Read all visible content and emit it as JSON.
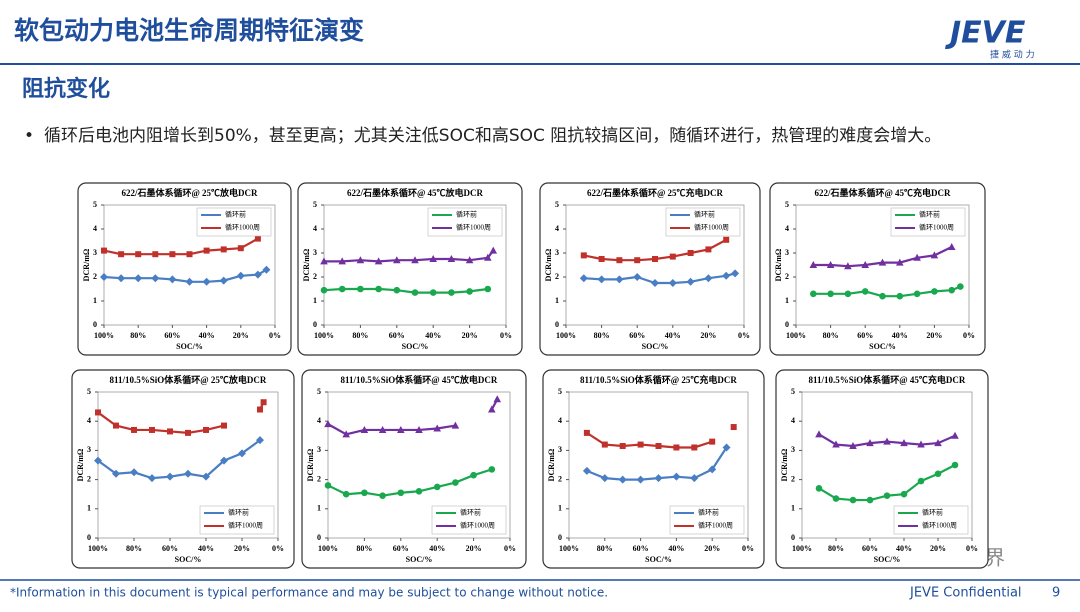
{
  "header": {
    "title": "软包动力电池生命周期特征演变",
    "logo": "JEVE",
    "logo_sub": "捷 威 动 力",
    "section": "阻抗变化",
    "bullet": "循环后电池内阻增长到50%，甚至更高；尤其关注低SOC和高SOC 阻抗较搞区间，随循环进行，热管理的难度会增大。"
  },
  "footer": {
    "note": "*Information in this document is typical performance and may be subject to change without notice.",
    "confidential": "JEVE Confidential",
    "page": "9",
    "watermark": "电动新视界"
  },
  "chart_data": [
    {
      "type": "line",
      "title": "622/石墨体系循环@ 25℃放电DCR",
      "x_label": "SOC/%",
      "y_label": "DCR/mΩ",
      "legend": "upper right",
      "x": [
        100,
        90,
        80,
        70,
        60,
        50,
        40,
        30,
        20,
        10,
        5
      ],
      "series": [
        {
          "name": "循环前",
          "color": "#4a7ec4",
          "marker": "diamond",
          "values": [
            2.0,
            1.95,
            1.95,
            1.95,
            1.9,
            1.8,
            1.8,
            1.85,
            2.05,
            2.1,
            2.3
          ]
        },
        {
          "name": "循环1000周",
          "color": "#c0312b",
          "marker": "square",
          "values": [
            3.1,
            2.95,
            2.95,
            2.95,
            2.95,
            2.95,
            3.1,
            3.15,
            3.2,
            3.6,
            null
          ]
        }
      ],
      "xlim": [
        100,
        0
      ],
      "ylim": [
        0,
        5
      ],
      "yticks": [
        0,
        1,
        2,
        3,
        4,
        5
      ],
      "xticks": [
        {
          "value": 100,
          "label": "100%"
        },
        {
          "value": 80,
          "label": "80%"
        },
        {
          "value": 60,
          "label": "60%"
        },
        {
          "value": 40,
          "label": "40%"
        },
        {
          "value": 20,
          "label": "20%"
        },
        {
          "value": 0,
          "label": "0%"
        }
      ]
    },
    {
      "type": "line",
      "title": "622/石墨体系循环@ 45℃放电DCR",
      "x_label": "SOC/%",
      "y_label": "DCR/mΩ",
      "legend": "upper right",
      "x": [
        100,
        90,
        80,
        70,
        60,
        50,
        40,
        30,
        20,
        10,
        7
      ],
      "series": [
        {
          "name": "循环前",
          "color": "#1aa84f",
          "marker": "circle",
          "values": [
            1.45,
            1.5,
            1.5,
            1.5,
            1.45,
            1.35,
            1.35,
            1.35,
            1.4,
            1.5,
            null
          ]
        },
        {
          "name": "循环1000周",
          "color": "#7030a0",
          "marker": "triangle",
          "values": [
            2.65,
            2.65,
            2.7,
            2.65,
            2.7,
            2.7,
            2.75,
            2.75,
            2.7,
            2.8,
            3.1
          ]
        }
      ],
      "xlim": [
        100,
        0
      ],
      "ylim": [
        0,
        5
      ],
      "yticks": [
        0,
        1,
        2,
        3,
        4,
        5
      ],
      "xticks": [
        {
          "value": 100,
          "label": "100%"
        },
        {
          "value": 80,
          "label": "80%"
        },
        {
          "value": 60,
          "label": "60%"
        },
        {
          "value": 40,
          "label": "40%"
        },
        {
          "value": 20,
          "label": "20%"
        },
        {
          "value": 0,
          "label": "0%"
        }
      ]
    },
    {
      "type": "line",
      "title": "622/石墨体系循环@ 25℃充电DCR",
      "x_label": "SOC/%",
      "y_label": "DCR/mΩ",
      "legend": "upper right",
      "x": [
        90,
        80,
        70,
        60,
        50,
        40,
        30,
        20,
        10,
        5
      ],
      "series": [
        {
          "name": "循环前",
          "color": "#4a7ec4",
          "marker": "diamond",
          "values": [
            1.95,
            1.9,
            1.9,
            2.0,
            1.75,
            1.75,
            1.8,
            1.95,
            2.05,
            2.15
          ]
        },
        {
          "name": "循环1000周",
          "color": "#c0312b",
          "marker": "square",
          "values": [
            2.9,
            2.75,
            2.7,
            2.7,
            2.75,
            2.85,
            3.0,
            3.15,
            3.55,
            null
          ]
        }
      ],
      "xlim": [
        100,
        0
      ],
      "ylim": [
        0,
        5
      ],
      "yticks": [
        0,
        1,
        2,
        3,
        4,
        5
      ],
      "xticks": [
        {
          "value": 100,
          "label": "100%"
        },
        {
          "value": 80,
          "label": "80%"
        },
        {
          "value": 60,
          "label": "60%"
        },
        {
          "value": 40,
          "label": "40%"
        },
        {
          "value": 20,
          "label": "20%"
        },
        {
          "value": 0,
          "label": "0%"
        }
      ]
    },
    {
      "type": "line",
      "title": "622/石墨体系循环@ 45℃充电DCR",
      "x_label": "SOC/%",
      "y_label": "DCR/mΩ",
      "legend": "upper right",
      "x": [
        90,
        80,
        70,
        60,
        50,
        40,
        30,
        20,
        10,
        5
      ],
      "series": [
        {
          "name": "循环前",
          "color": "#1aa84f",
          "marker": "circle",
          "values": [
            1.3,
            1.3,
            1.3,
            1.4,
            1.2,
            1.2,
            1.3,
            1.4,
            1.45,
            1.6
          ]
        },
        {
          "name": "循环1000周",
          "color": "#7030a0",
          "marker": "triangle",
          "values": [
            2.5,
            2.5,
            2.45,
            2.5,
            2.6,
            2.6,
            2.8,
            2.9,
            3.25,
            null
          ]
        }
      ],
      "xlim": [
        100,
        0
      ],
      "ylim": [
        0,
        5
      ],
      "yticks": [
        0,
        1,
        2,
        3,
        4,
        5
      ],
      "xticks": [
        {
          "value": 100,
          "label": "100%"
        },
        {
          "value": 80,
          "label": "80%"
        },
        {
          "value": 60,
          "label": "60%"
        },
        {
          "value": 40,
          "label": "40%"
        },
        {
          "value": 20,
          "label": "20%"
        },
        {
          "value": 0,
          "label": "0%"
        }
      ]
    },
    {
      "type": "line",
      "title": "811/10.5%SiO体系循环@ 25℃放电DCR",
      "x_label": "SOC/%",
      "y_label": "DCR/mΩ",
      "legend": "lower right",
      "x": [
        100,
        90,
        80,
        70,
        60,
        50,
        40,
        30,
        20,
        10,
        8
      ],
      "series": [
        {
          "name": "循环前",
          "color": "#4a7ec4",
          "marker": "diamond",
          "values": [
            2.65,
            2.2,
            2.25,
            2.05,
            2.1,
            2.2,
            2.1,
            2.65,
            2.9,
            3.35,
            null
          ]
        },
        {
          "name": "循环1000周",
          "color": "#c0312b",
          "marker": "square",
          "values": [
            4.3,
            3.85,
            3.7,
            3.7,
            3.65,
            3.6,
            3.7,
            3.85,
            null,
            4.4,
            4.65
          ]
        }
      ],
      "xlim": [
        100,
        0
      ],
      "ylim": [
        0,
        5
      ],
      "yticks": [
        0,
        1,
        2,
        3,
        4,
        5
      ],
      "xticks": [
        {
          "value": 100,
          "label": "100%"
        },
        {
          "value": 80,
          "label": "80%"
        },
        {
          "value": 60,
          "label": "60%"
        },
        {
          "value": 40,
          "label": "40%"
        },
        {
          "value": 20,
          "label": "20%"
        },
        {
          "value": 0,
          "label": "0%"
        }
      ]
    },
    {
      "type": "line",
      "title": "811/10.5%SiO体系循环@ 45℃放电DCR",
      "x_label": "SOC/%",
      "y_label": "DCR/mΩ",
      "legend": "lower right",
      "x": [
        100,
        90,
        80,
        70,
        60,
        50,
        40,
        30,
        20,
        10,
        7
      ],
      "series": [
        {
          "name": "循环前",
          "color": "#1aa84f",
          "marker": "circle",
          "values": [
            1.8,
            1.5,
            1.55,
            1.45,
            1.55,
            1.6,
            1.75,
            1.9,
            2.15,
            2.35,
            null
          ]
        },
        {
          "name": "循环1000周",
          "color": "#7030a0",
          "marker": "triangle",
          "values": [
            3.9,
            3.55,
            3.7,
            3.7,
            3.7,
            3.7,
            3.75,
            3.85,
            null,
            4.4,
            4.75
          ]
        }
      ],
      "xlim": [
        100,
        0
      ],
      "ylim": [
        0,
        5
      ],
      "yticks": [
        0,
        1,
        2,
        3,
        4,
        5
      ],
      "xticks": [
        {
          "value": 100,
          "label": "100%"
        },
        {
          "value": 80,
          "label": "80%"
        },
        {
          "value": 60,
          "label": "60%"
        },
        {
          "value": 40,
          "label": "40%"
        },
        {
          "value": 20,
          "label": "20%"
        },
        {
          "value": 0,
          "label": "0%"
        }
      ]
    },
    {
      "type": "line",
      "title": "811/10.5%SiO体系循环@ 25℃充电DCR",
      "x_label": "SOC/%",
      "y_label": "DCR/mΩ",
      "legend": "lower right",
      "x": [
        90,
        80,
        70,
        60,
        50,
        40,
        30,
        20,
        12,
        8
      ],
      "series": [
        {
          "name": "循环前",
          "color": "#4a7ec4",
          "marker": "diamond",
          "values": [
            2.3,
            2.05,
            2.0,
            2.0,
            2.05,
            2.1,
            2.05,
            2.35,
            3.1,
            null
          ]
        },
        {
          "name": "循环1000周",
          "color": "#c0312b",
          "marker": "square",
          "values": [
            3.6,
            3.2,
            3.15,
            3.2,
            3.15,
            3.1,
            3.1,
            3.3,
            null,
            3.8
          ]
        }
      ],
      "xlim": [
        100,
        0
      ],
      "ylim": [
        0,
        5
      ],
      "yticks": [
        0,
        1,
        2,
        3,
        4,
        5
      ],
      "xticks": [
        {
          "value": 100,
          "label": "100%"
        },
        {
          "value": 80,
          "label": "80%"
        },
        {
          "value": 60,
          "label": "60%"
        },
        {
          "value": 40,
          "label": "40%"
        },
        {
          "value": 20,
          "label": "20%"
        },
        {
          "value": 0,
          "label": "0%"
        }
      ]
    },
    {
      "type": "line",
      "title": "811/10.5%SiO体系循环@ 45℃充电DCR",
      "x_label": "SOC/%",
      "y_label": "DCR/mΩ",
      "legend": "lower right",
      "x": [
        90,
        80,
        70,
        60,
        50,
        40,
        30,
        20,
        10
      ],
      "series": [
        {
          "name": "循环前",
          "color": "#1aa84f",
          "marker": "circle",
          "values": [
            1.7,
            1.35,
            1.3,
            1.3,
            1.45,
            1.5,
            1.95,
            2.2,
            2.5
          ]
        },
        {
          "name": "循环1000周",
          "color": "#7030a0",
          "marker": "triangle",
          "values": [
            3.55,
            3.2,
            3.15,
            3.25,
            3.3,
            3.25,
            3.2,
            3.25,
            3.5
          ]
        }
      ],
      "xlim": [
        100,
        0
      ],
      "ylim": [
        0,
        5
      ],
      "yticks": [
        0,
        1,
        2,
        3,
        4,
        5
      ],
      "xticks": [
        {
          "value": 100,
          "label": "100%"
        },
        {
          "value": 80,
          "label": "80%"
        },
        {
          "value": 60,
          "label": "60%"
        },
        {
          "value": 40,
          "label": "40%"
        },
        {
          "value": 20,
          "label": "20%"
        },
        {
          "value": 0,
          "label": "0%"
        }
      ]
    }
  ]
}
